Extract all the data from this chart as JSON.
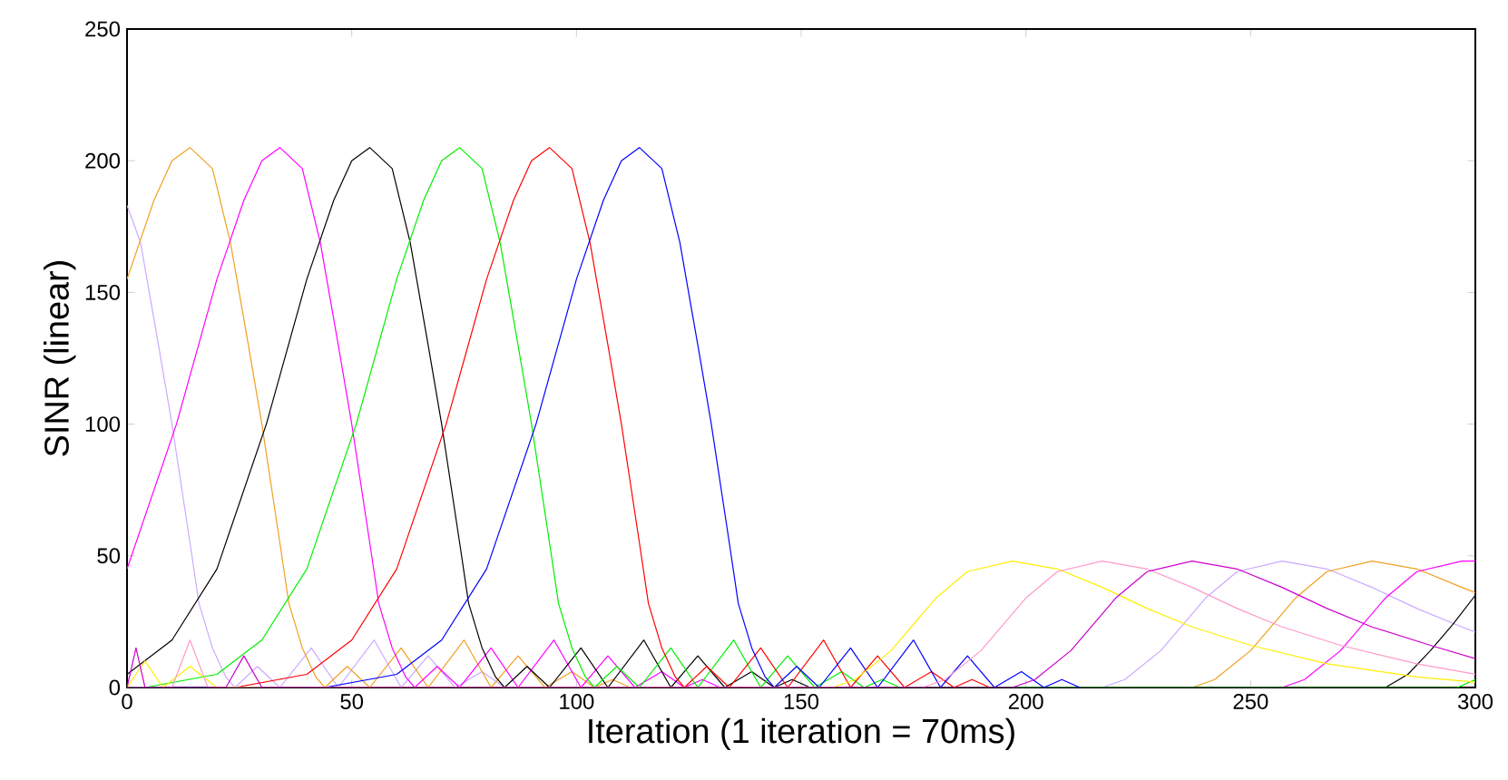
{
  "chart_data": {
    "type": "line",
    "xlabel": "Iteration (1 iteration = 70ms)",
    "ylabel": "SINR (linear)",
    "xlim": [
      0,
      300
    ],
    "ylim": [
      0,
      250
    ],
    "xticks": [
      0,
      50,
      100,
      150,
      200,
      250,
      300
    ],
    "yticks": [
      0,
      50,
      100,
      150,
      200,
      250
    ],
    "grid": false,
    "marker": "none",
    "line_style": "solid",
    "series": [
      {
        "color": "#ccaaff",
        "x": [
          0,
          3,
          7,
          10,
          14,
          16,
          19,
          22,
          24,
          29,
          34,
          41,
          47,
          55,
          61,
          67,
          73,
          79,
          84,
          217,
          222,
          230,
          240,
          247,
          257,
          267,
          277,
          287,
          297,
          300
        ],
        "values": [
          183,
          169,
          130,
          100,
          55,
          32,
          15,
          4,
          0,
          8,
          0,
          15,
          0,
          18,
          0,
          12,
          0,
          6,
          0,
          0,
          3,
          14,
          34,
          44,
          48,
          45,
          38,
          30,
          23,
          21
        ]
      },
      {
        "color": "#f0a020",
        "x": [
          0,
          6,
          10,
          14,
          19,
          23,
          27,
          30,
          34,
          36,
          39,
          42,
          44,
          49,
          54,
          61,
          67,
          75,
          81,
          87,
          93,
          99,
          104,
          108,
          112,
          237,
          242,
          250,
          260,
          267,
          277,
          287,
          297,
          300
        ],
        "values": [
          155,
          185,
          200,
          205,
          197,
          169,
          130,
          100,
          55,
          32,
          15,
          4,
          0,
          8,
          0,
          15,
          0,
          18,
          0,
          12,
          0,
          6,
          0,
          3,
          0,
          0,
          3,
          14,
          34,
          44,
          48,
          45,
          38,
          36
        ]
      },
      {
        "color": "#ff00ff",
        "x": [
          0,
          11,
          20,
          26,
          30,
          34,
          39,
          43,
          47,
          50,
          54,
          56,
          59,
          62,
          64,
          69,
          74,
          81,
          87,
          95,
          101,
          107,
          113,
          119,
          124,
          128,
          132,
          257,
          262,
          270,
          280,
          287,
          297,
          300
        ],
        "values": [
          45,
          100,
          155,
          185,
          200,
          205,
          197,
          169,
          130,
          100,
          55,
          32,
          15,
          4,
          0,
          8,
          0,
          15,
          0,
          18,
          0,
          12,
          0,
          6,
          0,
          3,
          0,
          0,
          3,
          14,
          34,
          44,
          48,
          48
        ]
      },
      {
        "color": "#000000",
        "x": [
          0,
          10,
          20,
          31,
          40,
          46,
          50,
          54,
          59,
          63,
          67,
          70,
          74,
          76,
          79,
          82,
          84,
          89,
          94,
          101,
          107,
          115,
          121,
          127,
          133,
          139,
          144,
          148,
          152,
          280,
          285,
          290,
          295,
          300
        ],
        "values": [
          5,
          18,
          45,
          100,
          155,
          185,
          200,
          205,
          197,
          169,
          130,
          100,
          55,
          32,
          15,
          4,
          0,
          8,
          0,
          15,
          0,
          18,
          0,
          12,
          0,
          6,
          0,
          3,
          0,
          0,
          5,
          14,
          24,
          35
        ]
      },
      {
        "color": "#00ee00",
        "x": [
          0,
          4,
          20,
          30,
          40,
          51,
          60,
          66,
          70,
          74,
          79,
          83,
          87,
          90,
          94,
          96,
          99,
          102,
          104,
          109,
          114,
          121,
          127,
          135,
          141,
          147,
          153,
          159,
          164,
          168,
          172,
          296,
          300
        ],
        "values": [
          0,
          0,
          5,
          18,
          45,
          100,
          155,
          185,
          200,
          205,
          197,
          169,
          130,
          100,
          55,
          32,
          15,
          4,
          0,
          8,
          0,
          15,
          0,
          18,
          0,
          12,
          0,
          6,
          0,
          3,
          0,
          0,
          3
        ]
      },
      {
        "color": "#ff0000",
        "x": [
          0,
          24,
          40,
          50,
          60,
          71,
          80,
          86,
          90,
          94,
          99,
          103,
          107,
          110,
          114,
          116,
          119,
          122,
          124,
          129,
          134,
          141,
          147,
          155,
          161,
          167,
          173,
          179,
          184,
          188,
          192
        ],
        "values": [
          0,
          0,
          5,
          18,
          45,
          100,
          155,
          185,
          200,
          205,
          197,
          169,
          130,
          100,
          55,
          32,
          15,
          4,
          0,
          8,
          0,
          15,
          0,
          18,
          0,
          12,
          0,
          6,
          0,
          3,
          0
        ]
      },
      {
        "color": "#0000ff",
        "x": [
          0,
          44,
          60,
          70,
          80,
          91,
          100,
          106,
          110,
          114,
          119,
          123,
          127,
          130,
          134,
          136,
          139,
          142,
          144,
          149,
          154,
          161,
          167,
          175,
          181,
          187,
          193,
          199,
          204,
          208,
          212
        ],
        "values": [
          0,
          0,
          5,
          18,
          45,
          100,
          155,
          185,
          200,
          205,
          197,
          169,
          130,
          100,
          55,
          32,
          15,
          4,
          0,
          8,
          0,
          15,
          0,
          18,
          0,
          12,
          0,
          6,
          0,
          3,
          0
        ]
      },
      {
        "color": "#ffee00",
        "x": [
          0,
          4,
          8,
          14,
          20,
          157,
          162,
          170,
          180,
          187,
          197,
          207,
          217,
          227,
          237,
          250,
          267,
          287,
          300
        ],
        "values": [
          0,
          10,
          0,
          8,
          0,
          0,
          3,
          14,
          34,
          44,
          48,
          45,
          38,
          30,
          23,
          16,
          9,
          4,
          2
        ]
      },
      {
        "color": "#ff99cc",
        "x": [
          0,
          10,
          14,
          18,
          177,
          182,
          190,
          200,
          207,
          217,
          227,
          237,
          247,
          257,
          270,
          287,
          300
        ],
        "values": [
          0,
          0,
          18,
          0,
          0,
          3,
          14,
          34,
          44,
          48,
          45,
          38,
          30,
          23,
          16,
          9,
          5
        ]
      },
      {
        "color": "#cc00cc",
        "x": [
          0,
          2,
          4,
          22,
          26,
          30,
          197,
          202,
          210,
          220,
          227,
          237,
          247,
          257,
          267,
          277,
          290,
          300
        ],
        "values": [
          0,
          15,
          0,
          0,
          12,
          0,
          0,
          3,
          14,
          34,
          44,
          48,
          45,
          38,
          30,
          23,
          16,
          11
        ]
      }
    ]
  }
}
